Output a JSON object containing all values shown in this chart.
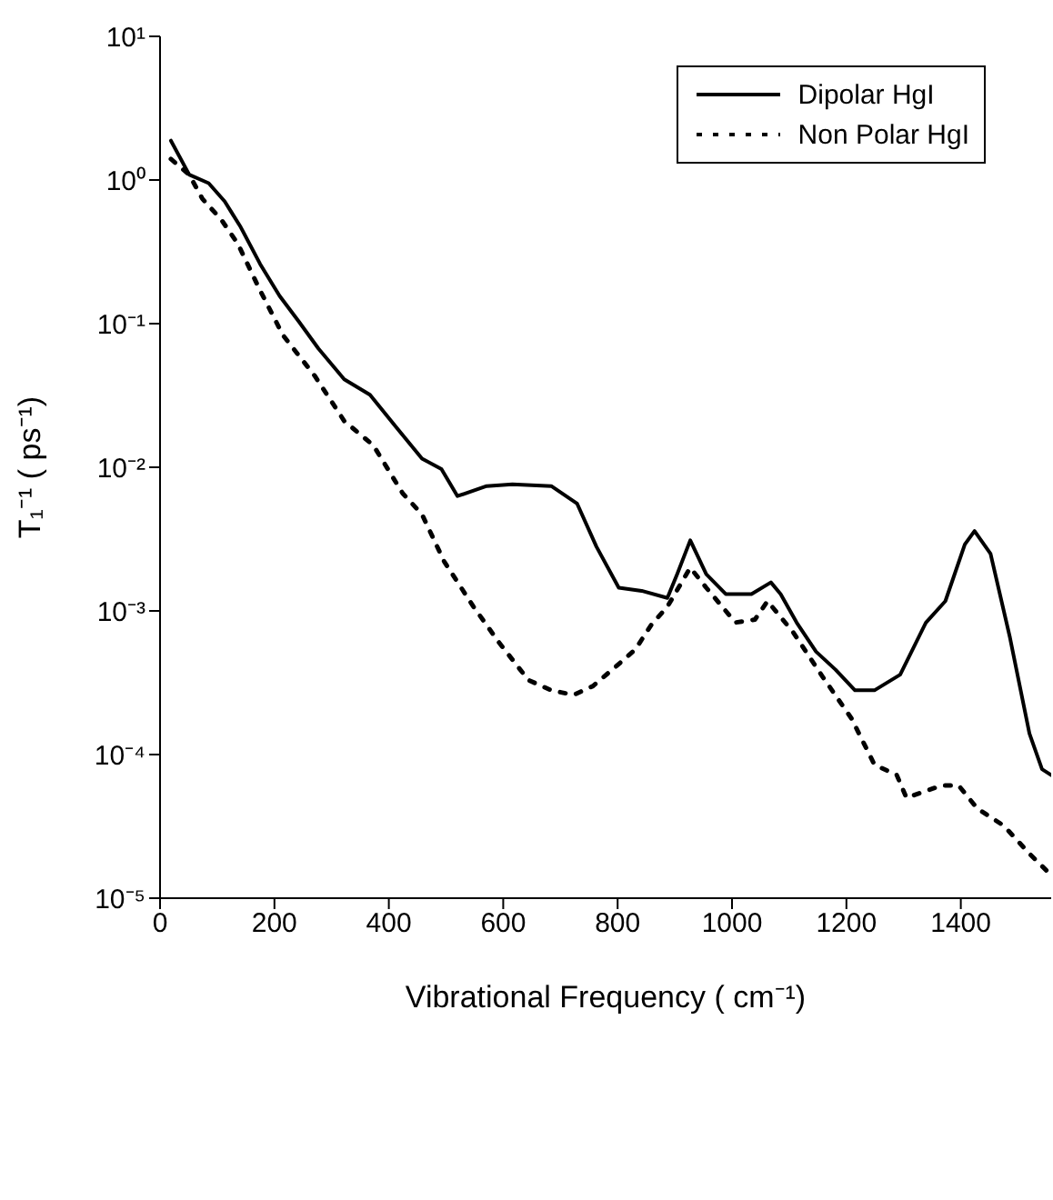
{
  "chart_data": {
    "type": "line",
    "xlabel": "Vibrational Frequency ( cm⁻¹)",
    "ylabel": "T₁⁻¹ ( ps⁻¹)",
    "log": "y",
    "xlim": [
      0,
      1558
    ],
    "xticks": [
      0,
      200,
      400,
      600,
      800,
      1000,
      1200,
      1400
    ],
    "ylim": [
      1e-05,
      10
    ],
    "yticks": [
      {
        "value": 1e-05,
        "label": "10⁻⁵"
      },
      {
        "value": 0.0001,
        "label": "10⁻⁴"
      },
      {
        "value": 0.001,
        "label": "10⁻³"
      },
      {
        "value": 0.01,
        "label": "10⁻²"
      },
      {
        "value": 0.1,
        "label": "10⁻¹"
      },
      {
        "value": 1,
        "label": "10⁰"
      },
      {
        "value": 10,
        "label": "10¹"
      }
    ],
    "grid": false,
    "legend": "top right",
    "marker": "none",
    "series": [
      {
        "name": "Dipolar HgI",
        "color": "#000000",
        "line_style": "solid",
        "x": [
          19,
          51,
          85,
          113,
          141,
          175,
          209,
          243,
          277,
          322,
          367,
          413,
          458,
          492,
          520,
          571,
          616,
          684,
          729,
          763,
          802,
          842,
          887,
          904,
          927,
          955,
          989,
          1034,
          1068,
          1085,
          1113,
          1147,
          1181,
          1215,
          1249,
          1294,
          1339,
          1373,
          1407,
          1424,
          1452,
          1486,
          1520,
          1542,
          1558
        ],
        "values": [
          1.88,
          1.09,
          0.95,
          0.71,
          0.47,
          0.26,
          0.156,
          0.103,
          0.067,
          0.041,
          0.032,
          0.019,
          0.0115,
          0.0097,
          0.0063,
          0.0074,
          0.0076,
          0.0074,
          0.0056,
          0.0028,
          0.00145,
          0.00138,
          0.00123,
          0.0018,
          0.0031,
          0.0018,
          0.00131,
          0.00131,
          0.00158,
          0.00131,
          0.00083,
          0.00052,
          0.00039,
          0.00028,
          0.00028,
          0.00036,
          0.00083,
          0.00117,
          0.0029,
          0.0036,
          0.0025,
          0.00065,
          0.00014,
          7.9e-05,
          7.2e-05
        ]
      },
      {
        "name": "Non Polar HgI",
        "color": "#000000",
        "line_style": "dotted",
        "x": [
          19,
          51,
          74,
          107,
          136,
          175,
          215,
          271,
          322,
          373,
          424,
          458,
          497,
          548,
          593,
          644,
          684,
          723,
          757,
          797,
          831,
          859,
          887,
          927,
          955,
          1006,
          1040,
          1062,
          1107,
          1158,
          1209,
          1249,
          1288,
          1305,
          1367,
          1396,
          1429,
          1475,
          1520,
          1554
        ],
        "values": [
          1.4,
          1.09,
          0.74,
          0.53,
          0.36,
          0.17,
          0.083,
          0.043,
          0.021,
          0.0142,
          0.0066,
          0.0047,
          0.0022,
          0.00107,
          0.0006,
          0.00033,
          0.00028,
          0.00026,
          0.0003,
          0.00041,
          0.00054,
          0.0008,
          0.00107,
          0.002,
          0.00145,
          0.00083,
          0.00087,
          0.00117,
          0.00071,
          0.00035,
          0.000178,
          8.5e-05,
          7.2e-05,
          5e-05,
          6.1e-05,
          6.1e-05,
          4.2e-05,
          3.2e-05,
          2.04e-05,
          1.5e-05
        ]
      }
    ]
  }
}
